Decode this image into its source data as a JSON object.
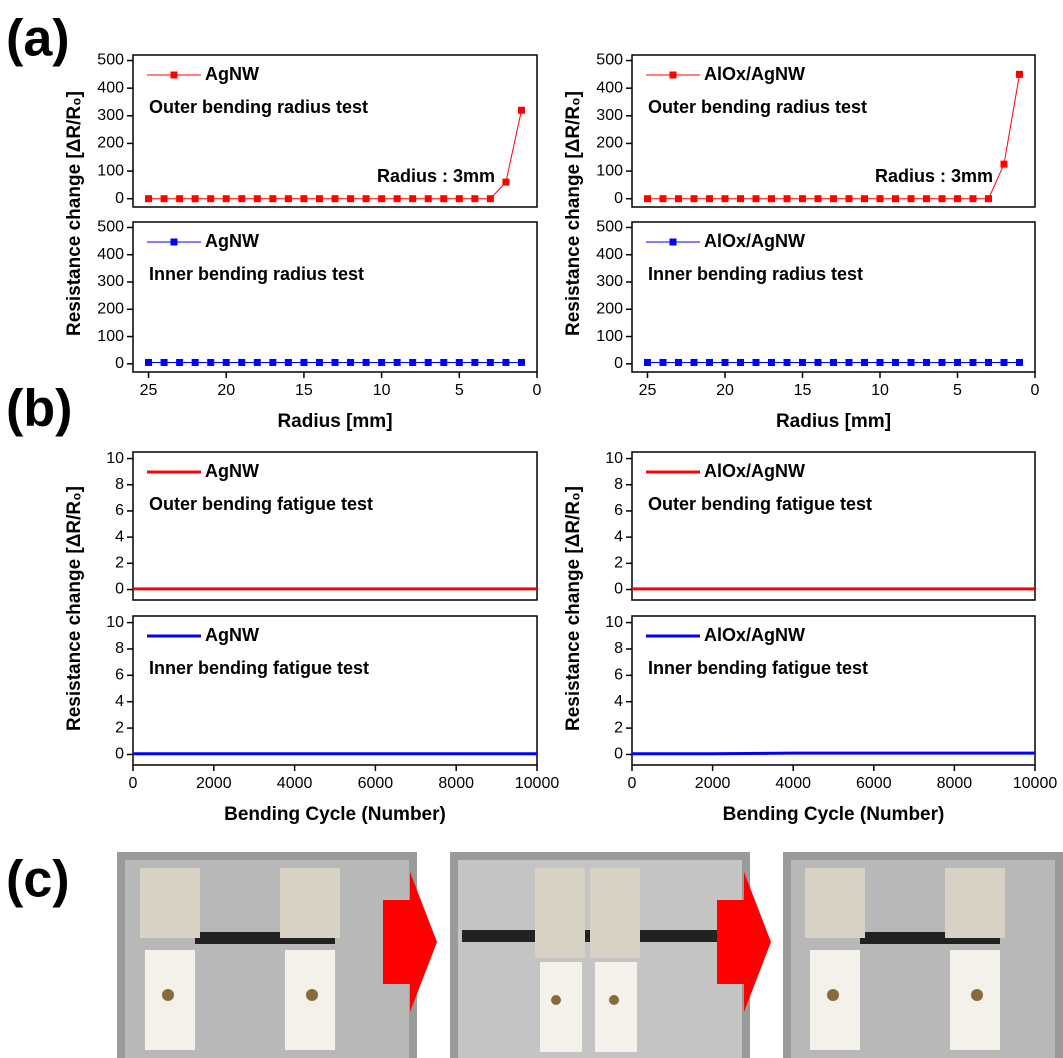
{
  "panel_labels": [
    "(a)",
    "(b)",
    "(c)"
  ],
  "chart_data": [
    {
      "type": "line",
      "ylabel": "Resistance change [ΔR/R₀]",
      "annotations": [
        "Outer bending radius test",
        "Radius : 3mm"
      ],
      "x": [
        25,
        24,
        23,
        22,
        21,
        20,
        19,
        18,
        17,
        16,
        15,
        14,
        13,
        12,
        11,
        10,
        9,
        8,
        7,
        6,
        5,
        4,
        3,
        2,
        1
      ],
      "series": [
        {
          "name": "AgNW",
          "color": "#ff0000",
          "marker": "square",
          "line_width": 1,
          "values": [
            0,
            0,
            0,
            0,
            0,
            0,
            0,
            0,
            0,
            0,
            0,
            0,
            0,
            0,
            0,
            0,
            0,
            0,
            0,
            0,
            0,
            0,
            0,
            60,
            320
          ]
        }
      ],
      "xlim": [
        26,
        0
      ],
      "ylim": [
        -30,
        520
      ],
      "yticks": [
        0,
        100,
        200,
        300,
        400,
        500
      ]
    },
    {
      "type": "line",
      "xlabel": "Radius [mm]",
      "annotations": [
        "Inner bending radius test"
      ],
      "x": [
        25,
        24,
        23,
        22,
        21,
        20,
        19,
        18,
        17,
        16,
        15,
        14,
        13,
        12,
        11,
        10,
        9,
        8,
        7,
        6,
        5,
        4,
        3,
        2,
        1
      ],
      "series": [
        {
          "name": "AgNW",
          "color": "#0000ff",
          "marker": "square",
          "line_width": 1,
          "values": [
            5,
            5,
            5,
            5,
            5,
            5,
            5,
            5,
            5,
            5,
            5,
            5,
            5,
            5,
            5,
            5,
            5,
            5,
            5,
            5,
            5,
            5,
            5,
            5,
            5
          ]
        }
      ],
      "xlim": [
        26,
        0
      ],
      "ylim": [
        -30,
        520
      ],
      "yticks": [
        0,
        100,
        200,
        300,
        400,
        500
      ],
      "xticks": [
        25,
        20,
        15,
        10,
        5,
        0
      ]
    },
    {
      "type": "line",
      "ylabel": "Resistance change [ΔR/R₀]",
      "annotations": [
        "Outer bending radius test",
        "Radius : 3mm"
      ],
      "x": [
        25,
        24,
        23,
        22,
        21,
        20,
        19,
        18,
        17,
        16,
        15,
        14,
        13,
        12,
        11,
        10,
        9,
        8,
        7,
        6,
        5,
        4,
        3,
        2,
        1
      ],
      "series": [
        {
          "name": "AlOx/AgNW",
          "color": "#ff0000",
          "marker": "square",
          "line_width": 1,
          "values": [
            0,
            0,
            0,
            0,
            0,
            0,
            0,
            0,
            0,
            0,
            0,
            0,
            0,
            0,
            0,
            0,
            0,
            0,
            0,
            0,
            0,
            0,
            0,
            125,
            450
          ]
        }
      ],
      "xlim": [
        26,
        0
      ],
      "ylim": [
        -30,
        520
      ],
      "yticks": [
        0,
        100,
        200,
        300,
        400,
        500
      ]
    },
    {
      "type": "line",
      "xlabel": "Radius [mm]",
      "annotations": [
        "Inner bending radius test"
      ],
      "x": [
        25,
        24,
        23,
        22,
        21,
        20,
        19,
        18,
        17,
        16,
        15,
        14,
        13,
        12,
        11,
        10,
        9,
        8,
        7,
        6,
        5,
        4,
        3,
        2,
        1
      ],
      "series": [
        {
          "name": "AlOx/AgNW",
          "color": "#0000ff",
          "marker": "square",
          "line_width": 1,
          "values": [
            5,
            5,
            5,
            5,
            5,
            5,
            5,
            5,
            5,
            5,
            5,
            5,
            5,
            5,
            5,
            5,
            5,
            5,
            5,
            5,
            5,
            5,
            5,
            5,
            5
          ]
        }
      ],
      "xlim": [
        26,
        0
      ],
      "ylim": [
        -30,
        520
      ],
      "yticks": [
        0,
        100,
        200,
        300,
        400,
        500
      ],
      "xticks": [
        25,
        20,
        15,
        10,
        5,
        0
      ]
    },
    {
      "type": "line",
      "ylabel": "Resistance change [ΔR/R₀]",
      "annotations": [
        "Outer bending fatigue test"
      ],
      "x": [
        0,
        2000,
        4000,
        6000,
        8000,
        10000
      ],
      "series": [
        {
          "name": "AgNW",
          "color": "#ff0000",
          "line_width": 3,
          "values": [
            0.05,
            0.05,
            0.05,
            0.05,
            0.05,
            0.05
          ]
        }
      ],
      "xlim": [
        0,
        10000
      ],
      "ylim": [
        -0.8,
        10.5
      ],
      "yticks": [
        0,
        2,
        4,
        6,
        8,
        10
      ]
    },
    {
      "type": "line",
      "xlabel": "Bending Cycle (Number)",
      "annotations": [
        "Inner bending fatigue test"
      ],
      "x": [
        0,
        2000,
        4000,
        6000,
        8000,
        10000
      ],
      "series": [
        {
          "name": "AgNW",
          "color": "#0000ff",
          "line_width": 3,
          "values": [
            0.05,
            0.05,
            0.05,
            0.05,
            0.05,
            0.05
          ]
        }
      ],
      "xlim": [
        0,
        10000
      ],
      "ylim": [
        -0.8,
        10.5
      ],
      "yticks": [
        0,
        2,
        4,
        6,
        8,
        10
      ],
      "xticks": [
        0,
        2000,
        4000,
        6000,
        8000,
        10000
      ]
    },
    {
      "type": "line",
      "ylabel": "Resistance change [ΔR/R₀]",
      "annotations": [
        "Outer bending fatigue test"
      ],
      "x": [
        0,
        2000,
        4000,
        6000,
        8000,
        10000
      ],
      "series": [
        {
          "name": "AlOx/AgNW",
          "color": "#ff0000",
          "line_width": 3,
          "values": [
            0.05,
            0.05,
            0.05,
            0.05,
            0.05,
            0.05
          ]
        }
      ],
      "xlim": [
        0,
        10000
      ],
      "ylim": [
        -0.8,
        10.5
      ],
      "yticks": [
        0,
        2,
        4,
        6,
        8,
        10
      ]
    },
    {
      "type": "line",
      "xlabel": "Bending Cycle (Number)",
      "annotations": [
        "Inner bending fatigue test"
      ],
      "x": [
        0,
        2000,
        4000,
        6000,
        8000,
        10000
      ],
      "series": [
        {
          "name": "AlOx/AgNW",
          "color": "#0000ff",
          "line_width": 3,
          "values": [
            0.05,
            0.05,
            0.1,
            0.1,
            0.1,
            0.1
          ]
        }
      ],
      "xlim": [
        0,
        10000
      ],
      "ylim": [
        -0.8,
        10.5
      ],
      "yticks": [
        0,
        2,
        4,
        6,
        8,
        10
      ],
      "xticks": [
        0,
        2000,
        4000,
        6000,
        8000,
        10000
      ]
    }
  ]
}
